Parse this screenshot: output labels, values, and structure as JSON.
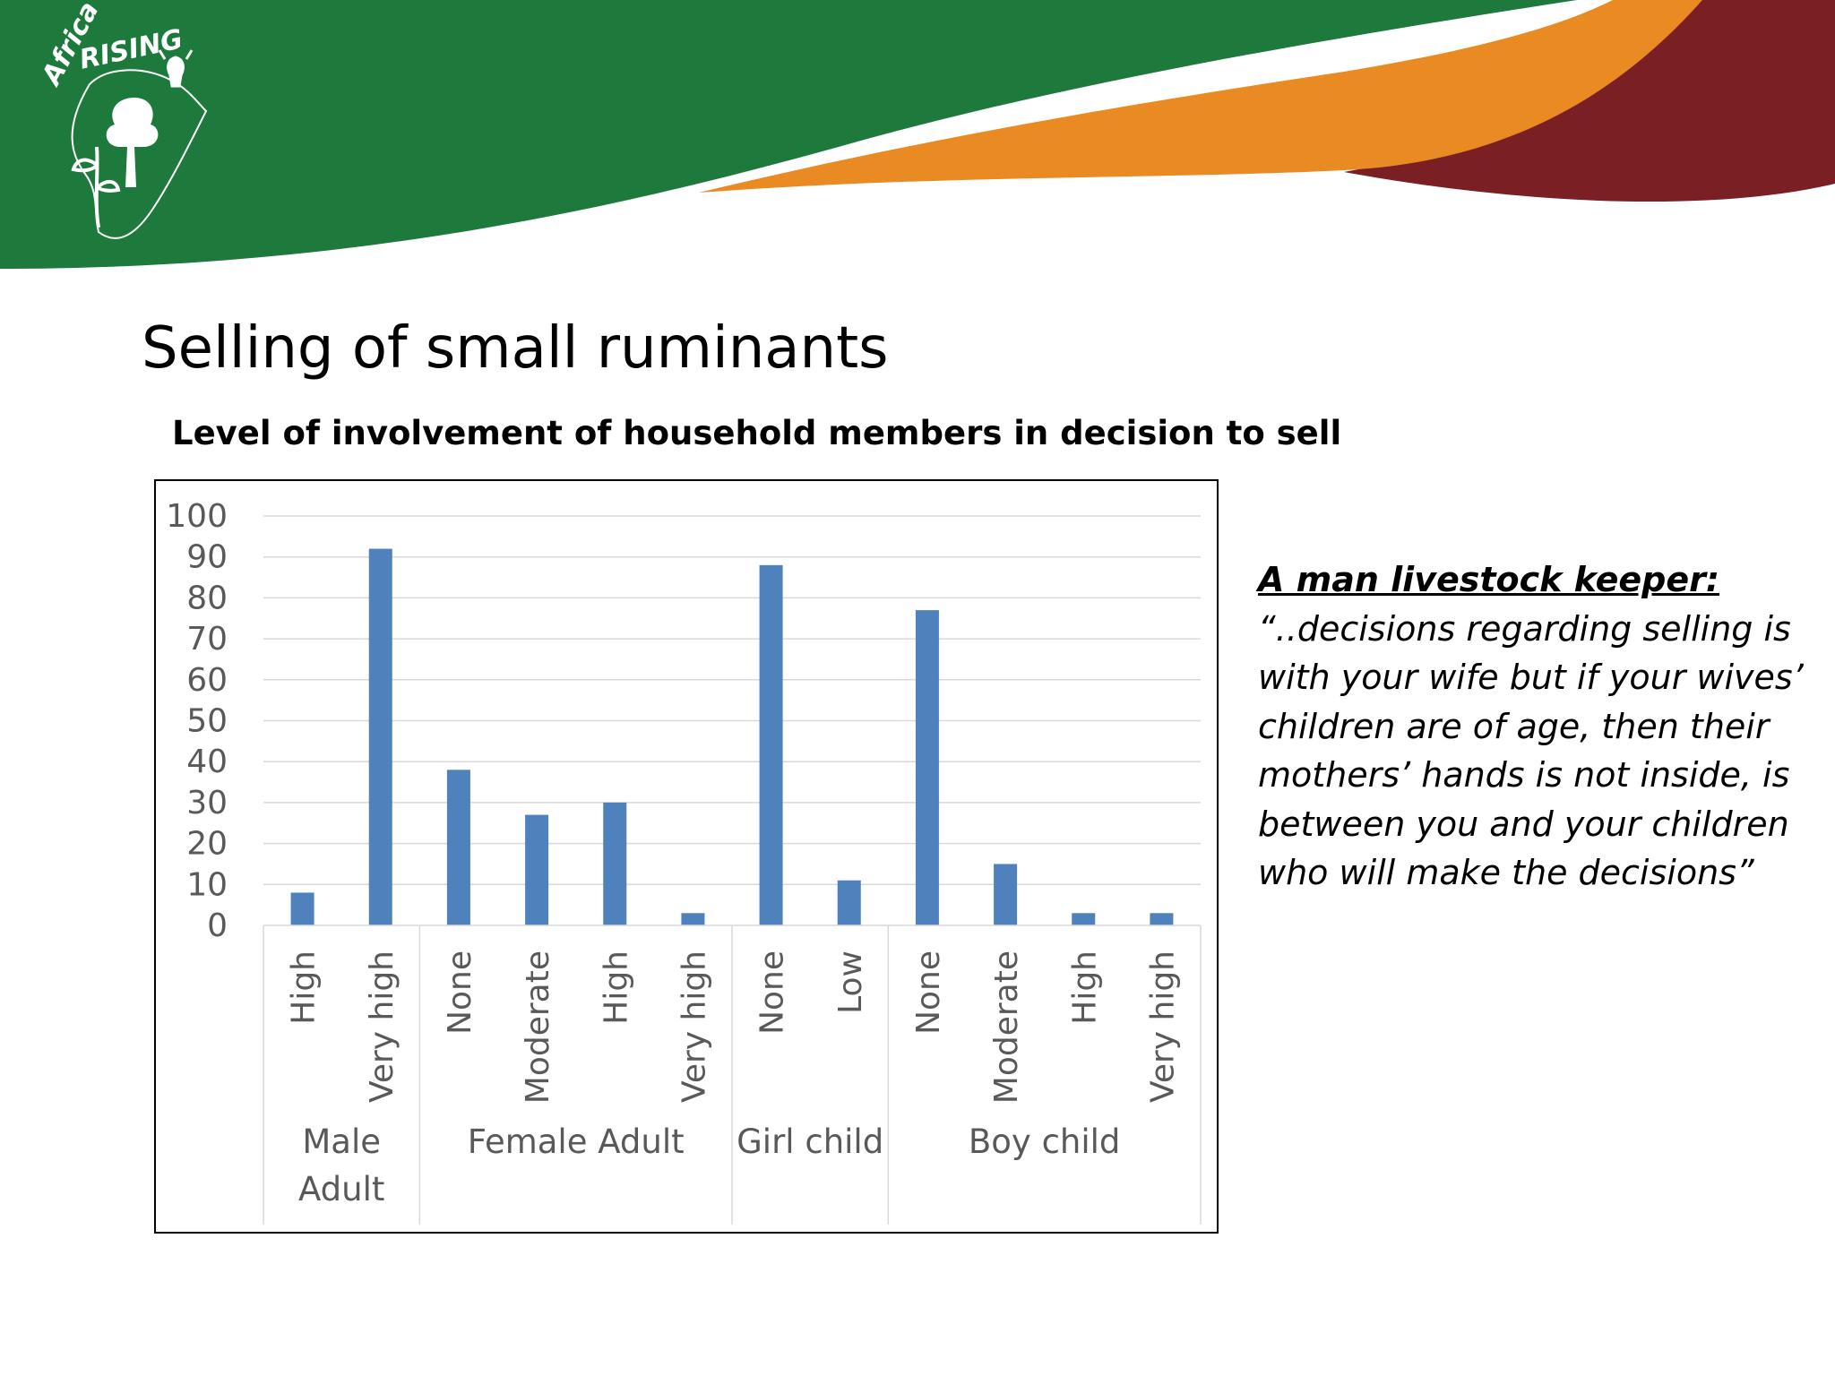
{
  "logo": {
    "word_1": "Africa",
    "word_2": "RISING"
  },
  "page_title": "Selling of small ruminants",
  "colors": {
    "green": "#1d7a3c",
    "orange": "#e98a22",
    "maroon": "#7a2025",
    "bar": "#4f81bd"
  },
  "quote": {
    "heading": "A man livestock keeper:",
    "lines": [
      "“..decisions regarding selling is",
      "with your wife but if your wives’",
      "children are of age, then their",
      "mothers’ hands is not inside, is",
      "between you and your children",
      "who will make the decisions”"
    ]
  },
  "chart_data": {
    "type": "bar",
    "title": "Level of involvement of household members in decision to sell",
    "xlabel": "",
    "ylabel": "",
    "ylim": [
      0,
      100
    ],
    "yticks": [
      "0",
      "10",
      "20",
      "30",
      "40",
      "50",
      "60",
      "70",
      "80",
      "90",
      "100"
    ],
    "grid": true,
    "groups": [
      {
        "name": "Male Adult",
        "name_lines": [
          "Male",
          "Adult"
        ],
        "categories": [
          "High",
          "Very high"
        ],
        "values": [
          8,
          92
        ]
      },
      {
        "name": "Female Adult",
        "name_lines": [
          "Female Adult"
        ],
        "categories": [
          "None",
          "Moderate",
          "High",
          "Very high"
        ],
        "values": [
          38,
          27,
          30,
          3
        ]
      },
      {
        "name": "Girl child",
        "name_lines": [
          "Girl child"
        ],
        "categories": [
          "None",
          "Low"
        ],
        "values": [
          88,
          11
        ]
      },
      {
        "name": "Boy child",
        "name_lines": [
          "Boy child"
        ],
        "categories": [
          "None",
          "Moderate",
          "High",
          "Very high"
        ],
        "values": [
          77,
          15,
          3,
          3
        ]
      }
    ]
  }
}
